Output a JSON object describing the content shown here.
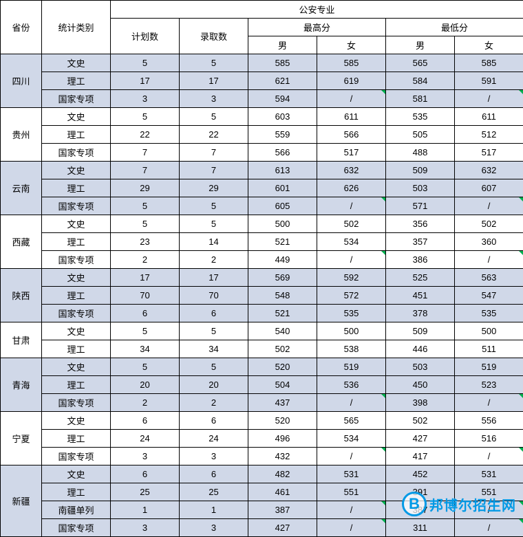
{
  "headers": {
    "province": "省份",
    "category": "统计类别",
    "major_group": "公安专业",
    "plan_count": "计划数",
    "admit_count": "录取数",
    "max_score": "最高分",
    "min_score": "最低分",
    "male": "男",
    "female": "女"
  },
  "provinces": [
    {
      "name": "四川",
      "alt": true,
      "rows": [
        {
          "category": "文史",
          "plan": "5",
          "admit": "5",
          "max_m": "585",
          "max_f": "585",
          "min_m": "565",
          "min_f": "585"
        },
        {
          "category": "理工",
          "plan": "17",
          "admit": "17",
          "max_m": "621",
          "max_f": "619",
          "min_m": "584",
          "min_f": "591"
        },
        {
          "category": "国家专项",
          "plan": "3",
          "admit": "3",
          "max_m": "594",
          "max_f": "/",
          "min_m": "581",
          "min_f": "/",
          "tri_f": true
        }
      ]
    },
    {
      "name": "贵州",
      "alt": false,
      "rows": [
        {
          "category": "文史",
          "plan": "5",
          "admit": "5",
          "max_m": "603",
          "max_f": "611",
          "min_m": "535",
          "min_f": "611"
        },
        {
          "category": "理工",
          "plan": "22",
          "admit": "22",
          "max_m": "559",
          "max_f": "566",
          "min_m": "505",
          "min_f": "512"
        },
        {
          "category": "国家专项",
          "plan": "7",
          "admit": "7",
          "max_m": "566",
          "max_f": "517",
          "min_m": "488",
          "min_f": "517"
        }
      ]
    },
    {
      "name": "云南",
      "alt": true,
      "rows": [
        {
          "category": "文史",
          "plan": "7",
          "admit": "7",
          "max_m": "613",
          "max_f": "632",
          "min_m": "509",
          "min_f": "632"
        },
        {
          "category": "理工",
          "plan": "29",
          "admit": "29",
          "max_m": "601",
          "max_f": "626",
          "min_m": "503",
          "min_f": "607"
        },
        {
          "category": "国家专项",
          "plan": "5",
          "admit": "5",
          "max_m": "605",
          "max_f": "/",
          "min_m": "571",
          "min_f": "/",
          "tri_f": true
        }
      ]
    },
    {
      "name": "西藏",
      "alt": false,
      "rows": [
        {
          "category": "文史",
          "plan": "5",
          "admit": "5",
          "max_m": "500",
          "max_f": "502",
          "min_m": "356",
          "min_f": "502"
        },
        {
          "category": "理工",
          "plan": "23",
          "admit": "14",
          "max_m": "521",
          "max_f": "534",
          "min_m": "357",
          "min_f": "360"
        },
        {
          "category": "国家专项",
          "plan": "2",
          "admit": "2",
          "max_m": "449",
          "max_f": "/",
          "min_m": "386",
          "min_f": "/",
          "tri_f": true
        }
      ]
    },
    {
      "name": "陕西",
      "alt": true,
      "rows": [
        {
          "category": "文史",
          "plan": "17",
          "admit": "17",
          "max_m": "569",
          "max_f": "592",
          "min_m": "525",
          "min_f": "563"
        },
        {
          "category": "理工",
          "plan": "70",
          "admit": "70",
          "max_m": "548",
          "max_f": "572",
          "min_m": "451",
          "min_f": "547"
        },
        {
          "category": "国家专项",
          "plan": "6",
          "admit": "6",
          "max_m": "521",
          "max_f": "535",
          "min_m": "378",
          "min_f": "535"
        }
      ]
    },
    {
      "name": "甘肃",
      "alt": false,
      "rows": [
        {
          "category": "文史",
          "plan": "5",
          "admit": "5",
          "max_m": "540",
          "max_f": "500",
          "min_m": "509",
          "min_f": "500"
        },
        {
          "category": "理工",
          "plan": "34",
          "admit": "34",
          "max_m": "502",
          "max_f": "538",
          "min_m": "446",
          "min_f": "511"
        }
      ]
    },
    {
      "name": "青海",
      "alt": true,
      "rows": [
        {
          "category": "文史",
          "plan": "5",
          "admit": "5",
          "max_m": "520",
          "max_f": "519",
          "min_m": "503",
          "min_f": "519"
        },
        {
          "category": "理工",
          "plan": "20",
          "admit": "20",
          "max_m": "504",
          "max_f": "536",
          "min_m": "450",
          "min_f": "523"
        },
        {
          "category": "国家专项",
          "plan": "2",
          "admit": "2",
          "max_m": "437",
          "max_f": "/",
          "min_m": "398",
          "min_f": "/",
          "tri_f": true
        }
      ]
    },
    {
      "name": "宁夏",
      "alt": false,
      "rows": [
        {
          "category": "文史",
          "plan": "6",
          "admit": "6",
          "max_m": "520",
          "max_f": "565",
          "min_m": "502",
          "min_f": "556"
        },
        {
          "category": "理工",
          "plan": "24",
          "admit": "24",
          "max_m": "496",
          "max_f": "534",
          "min_m": "427",
          "min_f": "516"
        },
        {
          "category": "国家专项",
          "plan": "3",
          "admit": "3",
          "max_m": "432",
          "max_f": "/",
          "min_m": "417",
          "min_f": "/",
          "tri_f": true
        }
      ]
    },
    {
      "name": "新疆",
      "alt": true,
      "rows": [
        {
          "category": "文史",
          "plan": "6",
          "admit": "6",
          "max_m": "482",
          "max_f": "531",
          "min_m": "452",
          "min_f": "531"
        },
        {
          "category": "理工",
          "plan": "25",
          "admit": "25",
          "max_m": "461",
          "max_f": "551",
          "min_m": "391",
          "min_f": "551"
        },
        {
          "category": "南疆单列",
          "plan": "1",
          "admit": "1",
          "max_m": "387",
          "max_f": "/",
          "min_m": "387",
          "min_f": "/",
          "tri_f": true
        },
        {
          "category": "国家专项",
          "plan": "3",
          "admit": "3",
          "max_m": "427",
          "max_f": "/",
          "min_m": "311",
          "min_f": "/",
          "tri_f": true
        }
      ]
    }
  ],
  "watermark": {
    "logo_letter": "B",
    "text": "邦博尔招生网",
    "color": "#0099e5"
  },
  "colors": {
    "alt_row_bg": "#d0d8e8",
    "border": "#000000",
    "triangle": "#00b050"
  }
}
